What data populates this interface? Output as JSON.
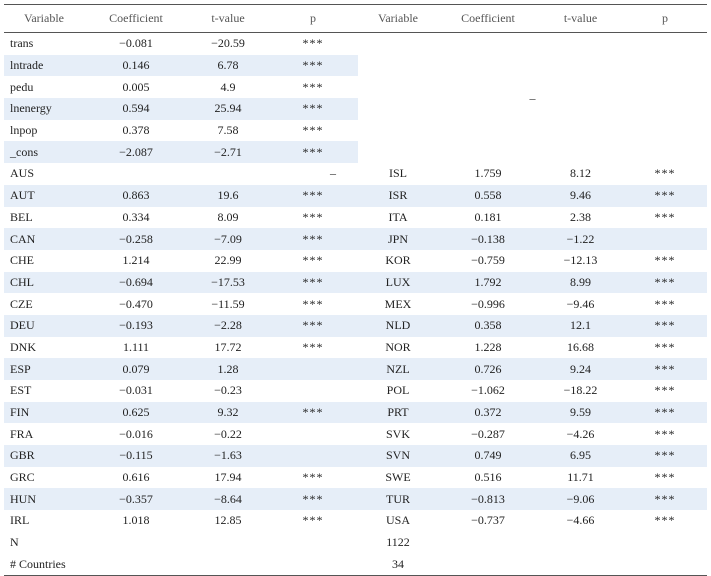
{
  "table": {
    "header": [
      "Variable",
      "Coefficient",
      "t-value",
      "p",
      "Variable",
      "Coefficient",
      "t-value",
      "p"
    ],
    "upper": {
      "rows": [
        [
          "trans",
          "−0.081",
          "−20.59",
          "***"
        ],
        [
          "lntrade",
          "0.146",
          "6.78",
          "***"
        ],
        [
          "pedu",
          "0.005",
          "4.9",
          "***"
        ],
        [
          "lnenergy",
          "0.594",
          "25.94",
          "***"
        ],
        [
          "lnpop",
          "0.378",
          "7.58",
          "***"
        ],
        [
          "_cons",
          "−2.087",
          "−2.71",
          "***"
        ]
      ],
      "merged": "–"
    },
    "aus": {
      "variable": "AUS",
      "merged": "–",
      "right": [
        "ISL",
        "1.759",
        "8.12",
        "***"
      ]
    },
    "rows": [
      [
        "AUT",
        "0.863",
        "19.6",
        "***",
        "ISR",
        "0.558",
        "9.46",
        "***"
      ],
      [
        "BEL",
        "0.334",
        "8.09",
        "***",
        "ITA",
        "0.181",
        "2.38",
        "***"
      ],
      [
        "CAN",
        "−0.258",
        "−7.09",
        "***",
        "JPN",
        "−0.138",
        "−1.22",
        null
      ],
      [
        "CHE",
        "1.214",
        "22.99",
        "***",
        "KOR",
        "−0.759",
        "−12.13",
        "***"
      ],
      [
        "CHL",
        "−0.694",
        "−17.53",
        "***",
        "LUX",
        "1.792",
        "8.99",
        "***"
      ],
      [
        "CZE",
        "−0.470",
        "−11.59",
        "***",
        "MEX",
        "−0.996",
        "−9.46",
        "***"
      ],
      [
        "DEU",
        "−0.193",
        "−2.28",
        "***",
        "NLD",
        "0.358",
        "12.1",
        "***"
      ],
      [
        "DNK",
        "1.111",
        "17.72",
        "***",
        "NOR",
        "1.228",
        "16.68",
        "***"
      ],
      [
        "ESP",
        "0.079",
        "1.28",
        null,
        "NZL",
        "0.726",
        "9.24",
        "***"
      ],
      [
        "EST",
        "−0.031",
        "−0.23",
        null,
        "POL",
        "−1.062",
        "−18.22",
        "***"
      ],
      [
        "FIN",
        "0.625",
        "9.32",
        "***",
        "PRT",
        "0.372",
        "9.59",
        "***"
      ],
      [
        "FRA",
        "−0.016",
        "−0.22",
        null,
        "SVK",
        "−0.287",
        "−4.26",
        "***"
      ],
      [
        "GBR",
        "−0.115",
        "−1.63",
        null,
        "SVN",
        "0.749",
        "6.95",
        "***"
      ],
      [
        "GRC",
        "0.616",
        "17.94",
        "***",
        "SWE",
        "0.516",
        "11.71",
        "***"
      ],
      [
        "HUN",
        "−0.357",
        "−8.64",
        "***",
        "TUR",
        "−0.813",
        "−9.06",
        "***"
      ],
      [
        "IRL",
        "1.018",
        "12.85",
        "***",
        "USA",
        "−0.737",
        "−4.66",
        "***"
      ]
    ],
    "footer": [
      {
        "label": "N",
        "value": "1122"
      },
      {
        "label": "# Countries",
        "value": "34"
      }
    ]
  }
}
